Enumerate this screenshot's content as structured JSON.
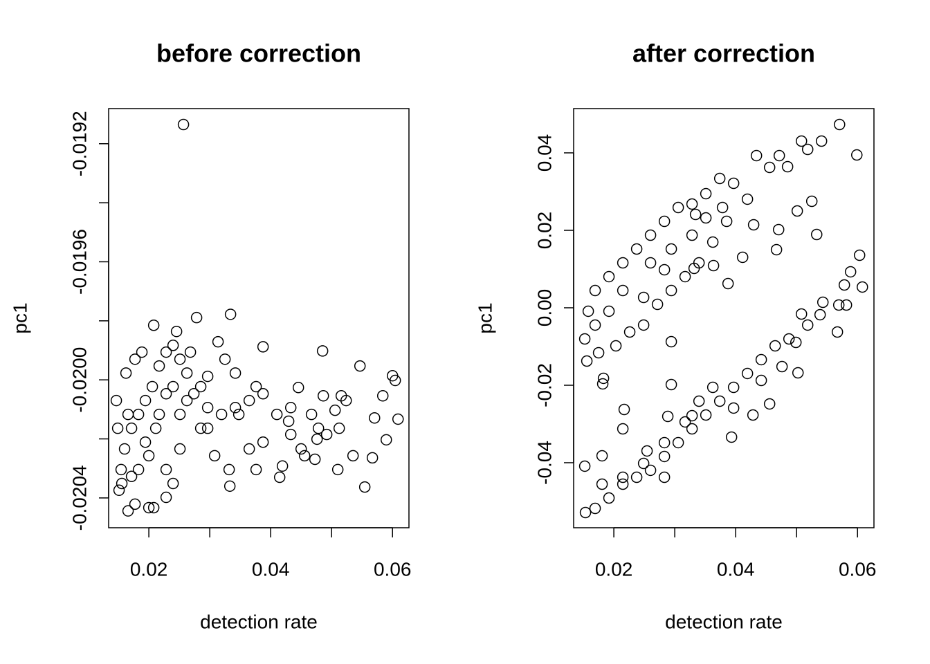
{
  "chart_data": [
    {
      "type": "scatter",
      "title": "before correction",
      "xlabel": "detection rate",
      "ylabel": "pc1",
      "color": "#000000",
      "marker": "open-circle",
      "xlim": [
        0.0134,
        0.0627
      ],
      "xticks": [
        0.02,
        {
          "value": 0.03,
          "label": null
        },
        0.04,
        {
          "value": 0.05,
          "label": null
        },
        0.06
      ],
      "ylim": [
        -0.020501,
        -0.019081
      ],
      "yticks": [
        {
          "value": -0.0204,
          "label": "-0.0204"
        },
        {
          "value": -0.0202,
          "label": null
        },
        {
          "value": -0.02,
          "label": "-0.0200"
        },
        {
          "value": -0.0198,
          "label": null
        },
        {
          "value": -0.0196,
          "label": "-0.0196"
        },
        {
          "value": -0.0194,
          "label": null
        },
        {
          "value": -0.0192,
          "label": "-0.0192"
        }
      ],
      "x": [
        0.02568,
        0.03341,
        0.02784,
        0.0208,
        0.03875,
        0.04852,
        0.05466,
        0.06,
        0.06045,
        0.06091,
        0.05841,
        0.05705,
        0.05898,
        0.0567,
        0.05545,
        0.05159,
        0.05057,
        0.04864,
        0.0492,
        0.04761,
        0.04455,
        0.04148,
        0.04193,
        0.04557,
        0.04295,
        0.03761,
        0.03318,
        0.0333,
        0.0308,
        0.03477,
        0.02966,
        0.02852,
        0.02625,
        0.02511,
        0.02398,
        0.02284,
        0.0217,
        0.02057,
        0.01943,
        0.0183,
        0.01716,
        0.01602,
        0.01545,
        0.01511,
        0.01659,
        0.01773,
        0.02,
        0.0208,
        0.02284,
        0.02398,
        0.02284,
        0.02511,
        0.02852,
        0.02966,
        0.03193,
        0.0342,
        0.03648,
        0.03875,
        0.04102,
        0.0433,
        0.0467,
        0.04784,
        0.05239,
        0.05125,
        0.05352,
        0.05102,
        0.03875,
        0.03648,
        0.02625,
        0.02398,
        0.0217,
        0.01943,
        0.0183,
        0.01557,
        0.01489,
        0.01466,
        0.01625,
        0.01773,
        0.01886,
        0.02455,
        0.03136,
        0.0325,
        0.0342,
        0.03761,
        0.0433,
        0.045,
        0.04727,
        0.02511,
        0.02739,
        0.02284,
        0.02114,
        0.02,
        0.01716,
        0.01659,
        0.02966,
        0.02682
      ],
      "y": [
        -0.019135,
        -0.019778,
        -0.019789,
        -0.019815,
        -0.019888,
        -0.019902,
        -0.019953,
        -0.019986,
        -0.020002,
        -0.020133,
        -0.020054,
        -0.020129,
        -0.020203,
        -0.020264,
        -0.020363,
        -0.020054,
        -0.020103,
        -0.020054,
        -0.020185,
        -0.020201,
        -0.020026,
        -0.02033,
        -0.020292,
        -0.020257,
        -0.02014,
        -0.020304,
        -0.020304,
        -0.02036,
        -0.020257,
        -0.020117,
        -0.020094,
        -0.020023,
        -0.019977,
        -0.01993,
        -0.019883,
        -0.019906,
        -0.019953,
        -0.020023,
        -0.02007,
        -0.020117,
        -0.020164,
        -0.020234,
        -0.020304,
        -0.020374,
        -0.020444,
        -0.020421,
        -0.020433,
        -0.020433,
        -0.020398,
        -0.020351,
        -0.020304,
        -0.020234,
        -0.020164,
        -0.020164,
        -0.020117,
        -0.020094,
        -0.02007,
        -0.020047,
        -0.020117,
        -0.020094,
        -0.020117,
        -0.020164,
        -0.02007,
        -0.020164,
        -0.020257,
        -0.020304,
        -0.020211,
        -0.020234,
        -0.02007,
        -0.020023,
        -0.020117,
        -0.020211,
        -0.020304,
        -0.020351,
        -0.020164,
        -0.02007,
        -0.019977,
        -0.01993,
        -0.019906,
        -0.019836,
        -0.019871,
        -0.01993,
        -0.019977,
        -0.020023,
        -0.020185,
        -0.020234,
        -0.020269,
        -0.020117,
        -0.020047,
        -0.020047,
        -0.020164,
        -0.020257,
        -0.020327,
        -0.020117,
        -0.019988,
        -0.019906
      ]
    },
    {
      "type": "scatter",
      "title": "after correction",
      "xlabel": "detection rate",
      "ylabel": "pc1",
      "color": "#000000",
      "marker": "open-circle",
      "xlim": [
        0.0134,
        0.0627
      ],
      "xticks": [
        0.02,
        {
          "value": 0.03,
          "label": null
        },
        0.04,
        {
          "value": 0.05,
          "label": null
        },
        0.06
      ],
      "ylim": [
        -0.05679,
        0.05143
      ],
      "yticks": [
        -0.04,
        -0.02,
        {
          "value": 0,
          "label": "0.00"
        },
        0.02,
        0.04
      ],
      "x": [
        0.05705,
        0.05409,
        0.0508,
        0.05182,
        0.04341,
        0.04716,
        0.04557,
        0.04852,
        0.05989,
        0.0525,
        0.05011,
        0.0533,
        0.04705,
        0.0467,
        0.04295,
        0.04114,
        0.03875,
        0.03636,
        0.03318,
        0.02943,
        0.04193,
        0.03966,
        0.03739,
        0.03511,
        0.03284,
        0.03057,
        0.0283,
        0.02602,
        0.02375,
        0.02148,
        0.0192,
        0.01693,
        0.0158,
        0.01523,
        0.01557,
        0.0175,
        0.0183,
        0.02034,
        0.02261,
        0.02489,
        0.02716,
        0.02943,
        0.0317,
        0.03398,
        0.03625,
        0.03852,
        0.03284,
        0.02943,
        0.02602,
        0.02148,
        0.0192,
        0.01693,
        0.02489,
        0.0283,
        0.03341,
        0.03511,
        0.03784,
        0.06034,
        0.05886,
        0.0608,
        0.05784,
        0.05818,
        0.05693,
        0.05432,
        0.05386,
        0.0508,
        0.0567,
        0.05182,
        0.04989,
        0.05023,
        0.04557,
        0.04284,
        0.03932,
        0.03284,
        0.02943,
        0.02886,
        0.02545,
        0.0217,
        0.02148,
        0.01818,
        0.01523,
        0.01534,
        0.01693,
        0.0192,
        0.02148,
        0.02375,
        0.02602,
        0.0283,
        0.03057,
        0.03284,
        0.03511,
        0.03739,
        0.03966,
        0.04193,
        0.0442,
        0.04648,
        0.04875,
        0.03625,
        0.03398,
        0.0317,
        0.0283,
        0.02489,
        0.02148,
        0.01807,
        0.03966,
        0.0442,
        0.04761,
        0.01807,
        0.0283
      ],
      "y": [
        0.04732,
        0.04304,
        0.04304,
        0.04089,
        0.03929,
        0.03929,
        0.03625,
        0.03643,
        0.03946,
        0.0275,
        0.025,
        0.01893,
        0.02018,
        0.015,
        0.02143,
        0.01304,
        0.00625,
        0.01089,
        0.01018,
        -0.00875,
        0.02804,
        0.03214,
        0.03339,
        0.02946,
        0.02679,
        0.02589,
        0.02232,
        0.01875,
        0.01518,
        0.01161,
        0.00804,
        0.00446,
        -0.00089,
        -0.00804,
        -0.01375,
        -0.01161,
        -0.01821,
        -0.00982,
        -0.00625,
        -0.00446,
        0.00089,
        0.00446,
        0.00804,
        0.01161,
        0.01696,
        0.02232,
        0.01875,
        0.01518,
        0.01161,
        0.00446,
        -0.00089,
        -0.00446,
        0.00268,
        0.00982,
        0.02411,
        0.02321,
        0.02589,
        0.01357,
        0.00929,
        0.00536,
        0.00589,
        0.00071,
        0.00071,
        0.00143,
        -0.00179,
        -0.00161,
        -0.00625,
        -0.00446,
        -0.00893,
        -0.01679,
        -0.02482,
        -0.02768,
        -0.03339,
        -0.02786,
        -0.01982,
        -0.02804,
        -0.03696,
        -0.02625,
        -0.03125,
        -0.01964,
        -0.04089,
        -0.05286,
        -0.05179,
        -0.04911,
        -0.04554,
        -0.04375,
        -0.04196,
        -0.03839,
        -0.03482,
        -0.03125,
        -0.02768,
        -0.02411,
        -0.02054,
        -0.01696,
        -0.01339,
        -0.00982,
        -0.00804,
        -0.02054,
        -0.02411,
        -0.02946,
        -0.03482,
        -0.04018,
        -0.04375,
        -0.04554,
        -0.02589,
        -0.01875,
        -0.01518,
        -0.03821,
        -0.04375
      ]
    }
  ]
}
